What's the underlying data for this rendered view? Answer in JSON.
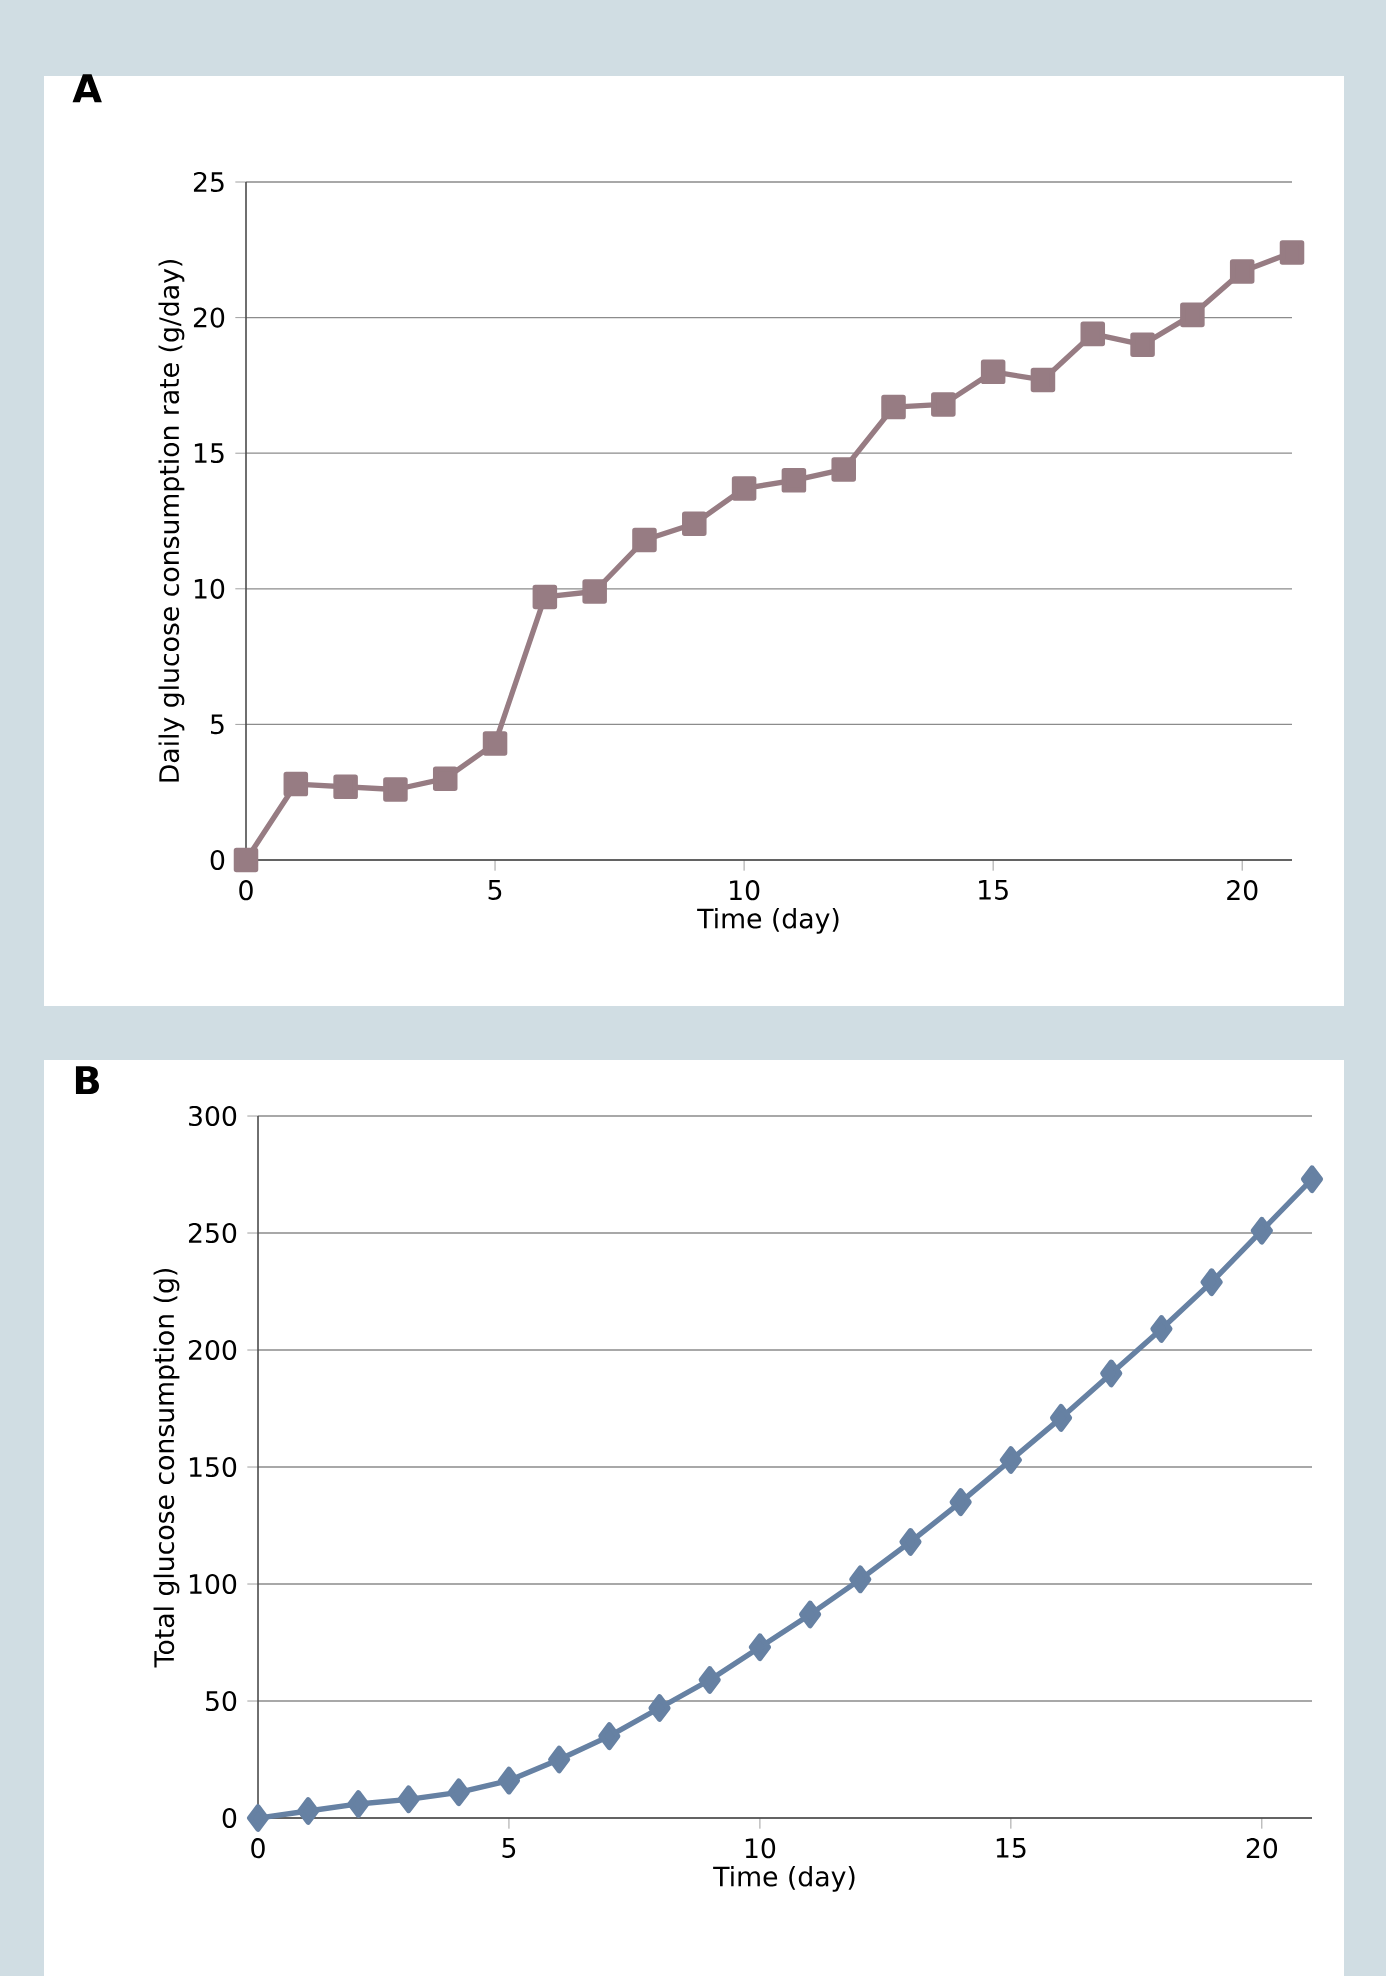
{
  "chart_data": [
    {
      "type": "line",
      "title": "A",
      "xlabel": "Time (day)",
      "ylabel": "Daily glucose consumption rate (g/day)",
      "x": [
        0,
        1,
        2,
        3,
        4,
        5,
        6,
        7,
        8,
        9,
        10,
        11,
        12,
        13,
        14,
        15,
        16,
        17,
        18,
        19,
        20,
        21
      ],
      "series": [
        {
          "color": "#977c83",
          "values": [
            0,
            2.8,
            2.7,
            2.6,
            3.0,
            4.3,
            9.7,
            9.9,
            11.8,
            12.4,
            13.7,
            14.0,
            14.4,
            16.7,
            16.8,
            18.0,
            17.7,
            19.4,
            19.0,
            20.1,
            21.7,
            22.4
          ]
        }
      ],
      "xlim": [
        0,
        21
      ],
      "xticks": [
        0,
        5,
        10,
        15,
        20
      ],
      "ylim": [
        0,
        25
      ],
      "yticks": [
        0,
        5,
        10,
        15,
        20,
        25
      ],
      "grid": "y",
      "marker": "square",
      "line_style": "solid"
    },
    {
      "type": "line",
      "title": "B",
      "xlabel": "Time (day)",
      "ylabel": "Total glucose consumption (g)",
      "x": [
        0,
        1,
        2,
        3,
        4,
        5,
        6,
        7,
        8,
        9,
        10,
        11,
        12,
        13,
        14,
        15,
        16,
        17,
        18,
        19,
        20,
        21
      ],
      "series": [
        {
          "color": "#6681a3",
          "values": [
            0,
            3,
            6,
            8,
            11,
            16,
            25,
            35,
            47,
            59,
            73,
            87,
            102,
            118,
            135,
            153,
            171,
            190,
            209,
            229,
            251,
            273
          ]
        }
      ],
      "xlim": [
        0,
        21
      ],
      "xticks": [
        0,
        5,
        10,
        15,
        20
      ],
      "ylim": [
        0,
        300
      ],
      "yticks": [
        0,
        50,
        100,
        150,
        200,
        250,
        300
      ],
      "grid": "y",
      "marker": "diamond",
      "line_style": "solid"
    }
  ]
}
